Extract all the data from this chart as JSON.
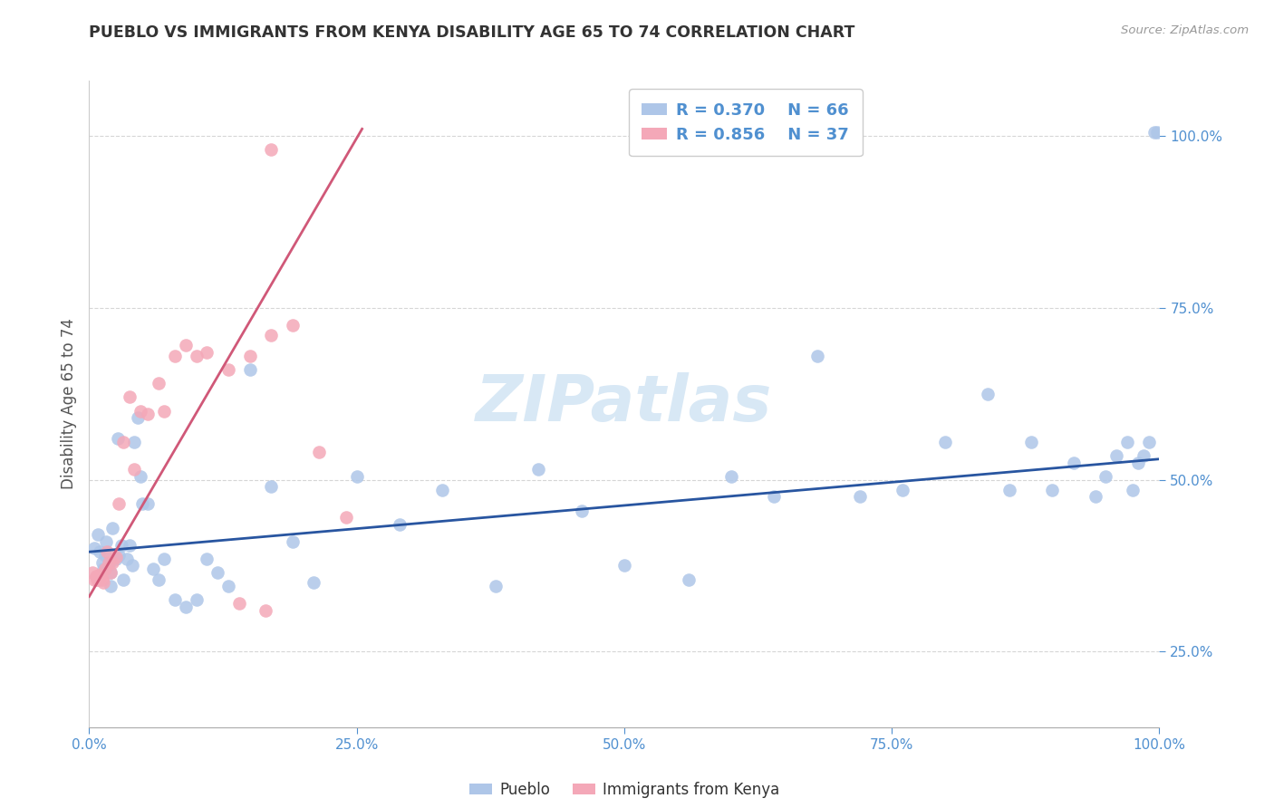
{
  "title": "PUEBLO VS IMMIGRANTS FROM KENYA DISABILITY AGE 65 TO 74 CORRELATION CHART",
  "source": "Source: ZipAtlas.com",
  "ylabel": "Disability Age 65 to 74",
  "legend_r1": "R = 0.370",
  "legend_n1": "N = 66",
  "legend_r2": "R = 0.856",
  "legend_n2": "N = 37",
  "blue_color": "#aec6e8",
  "pink_color": "#f4a8b8",
  "line_blue": "#2855a0",
  "line_pink": "#d05878",
  "watermark_text": "ZIPatlas",
  "watermark_color": "#d8e8f5",
  "background_color": "#ffffff",
  "tick_color": "#5090d0",
  "title_color": "#333333",
  "source_color": "#999999",
  "pueblo_x": [
    0.005,
    0.008,
    0.01,
    0.012,
    0.013,
    0.015,
    0.016,
    0.018,
    0.02,
    0.02,
    0.022,
    0.025,
    0.027,
    0.028,
    0.03,
    0.032,
    0.035,
    0.038,
    0.04,
    0.042,
    0.045,
    0.048,
    0.05,
    0.055,
    0.06,
    0.065,
    0.07,
    0.08,
    0.09,
    0.1,
    0.11,
    0.12,
    0.13,
    0.15,
    0.17,
    0.19,
    0.21,
    0.25,
    0.29,
    0.33,
    0.38,
    0.42,
    0.46,
    0.5,
    0.56,
    0.6,
    0.64,
    0.68,
    0.72,
    0.76,
    0.8,
    0.84,
    0.86,
    0.88,
    0.9,
    0.92,
    0.94,
    0.95,
    0.96,
    0.97,
    0.975,
    0.98,
    0.985,
    0.99,
    0.995,
    0.998
  ],
  "pueblo_y": [
    0.4,
    0.42,
    0.395,
    0.38,
    0.37,
    0.39,
    0.41,
    0.375,
    0.365,
    0.345,
    0.43,
    0.385,
    0.56,
    0.39,
    0.405,
    0.355,
    0.385,
    0.405,
    0.375,
    0.555,
    0.59,
    0.505,
    0.465,
    0.465,
    0.37,
    0.355,
    0.385,
    0.325,
    0.315,
    0.325,
    0.385,
    0.365,
    0.345,
    0.66,
    0.49,
    0.41,
    0.35,
    0.505,
    0.435,
    0.485,
    0.345,
    0.515,
    0.455,
    0.375,
    0.355,
    0.505,
    0.475,
    0.68,
    0.475,
    0.485,
    0.555,
    0.625,
    0.485,
    0.555,
    0.485,
    0.525,
    0.475,
    0.505,
    0.535,
    0.555,
    0.485,
    0.525,
    0.535,
    0.555,
    1.005,
    1.005
  ],
  "kenya_x": [
    0.003,
    0.005,
    0.006,
    0.007,
    0.008,
    0.009,
    0.01,
    0.011,
    0.012,
    0.013,
    0.015,
    0.017,
    0.018,
    0.02,
    0.022,
    0.025,
    0.028,
    0.032,
    0.038,
    0.042,
    0.048,
    0.055,
    0.065,
    0.07,
    0.08,
    0.09,
    0.1,
    0.11,
    0.13,
    0.15,
    0.17,
    0.19,
    0.215,
    0.24,
    0.17,
    0.14,
    0.165
  ],
  "kenya_y": [
    0.365,
    0.355,
    0.36,
    0.355,
    0.36,
    0.355,
    0.358,
    0.362,
    0.355,
    0.35,
    0.37,
    0.395,
    0.38,
    0.365,
    0.38,
    0.388,
    0.465,
    0.555,
    0.62,
    0.515,
    0.6,
    0.595,
    0.64,
    0.6,
    0.68,
    0.695,
    0.68,
    0.685,
    0.66,
    0.68,
    0.71,
    0.725,
    0.54,
    0.445,
    0.98,
    0.32,
    0.31
  ],
  "blue_trend_x": [
    0.0,
    1.0
  ],
  "blue_trend_y": [
    0.395,
    0.53
  ],
  "pink_trend_x": [
    0.0,
    0.255
  ],
  "pink_trend_y": [
    0.33,
    1.01
  ],
  "xlim": [
    0.0,
    1.0
  ],
  "ylim": [
    0.14,
    1.08
  ],
  "xticks": [
    0.0,
    0.25,
    0.5,
    0.75,
    1.0
  ],
  "xticklabels": [
    "0.0%",
    "25.0%",
    "50.0%",
    "75.0%",
    "100.0%"
  ],
  "yticks": [
    0.25,
    0.5,
    0.75,
    1.0
  ],
  "yticklabels": [
    "25.0%",
    "50.0%",
    "75.0%",
    "100.0%"
  ]
}
